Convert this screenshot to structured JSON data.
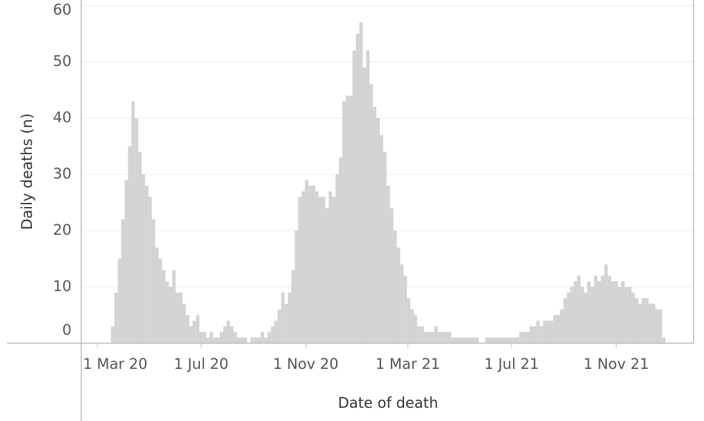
{
  "chart_data": {
    "type": "bar",
    "x_label": "Date of death",
    "y_label": "Daily deaths (n)",
    "color": "#d3d3d3",
    "grid": true,
    "xlim": [
      "2020-02-11",
      "2022-01-31"
    ],
    "ylim": [
      0,
      61
    ],
    "xticks": [
      {
        "value": "2020-03-01",
        "label": "1 Mar 20"
      },
      {
        "value": "2020-07-01",
        "label": "1 Jul 20"
      },
      {
        "value": "2020-11-01",
        "label": "1 Nov 20"
      },
      {
        "value": "2021-03-01",
        "label": "1 Mar 21"
      },
      {
        "value": "2021-07-01",
        "label": "1 Jul 21"
      },
      {
        "value": "2021-11-01",
        "label": "1 Nov 21"
      }
    ],
    "yticks": [
      0,
      10,
      20,
      30,
      40,
      50,
      60
    ],
    "x": [
      "2020-03-17",
      "2020-03-21",
      "2020-03-25",
      "2020-03-29",
      "2020-04-02",
      "2020-04-06",
      "2020-04-10",
      "2020-04-14",
      "2020-04-18",
      "2020-04-22",
      "2020-04-26",
      "2020-04-30",
      "2020-05-04",
      "2020-05-08",
      "2020-05-12",
      "2020-05-16",
      "2020-05-20",
      "2020-05-24",
      "2020-05-28",
      "2020-06-01",
      "2020-06-05",
      "2020-06-09",
      "2020-06-13",
      "2020-06-17",
      "2020-06-21",
      "2020-06-25",
      "2020-06-29",
      "2020-07-03",
      "2020-07-07",
      "2020-07-11",
      "2020-07-15",
      "2020-07-19",
      "2020-07-23",
      "2020-07-27",
      "2020-07-31",
      "2020-08-04",
      "2020-08-08",
      "2020-08-12",
      "2020-08-16",
      "2020-08-20",
      "2020-08-24",
      "2020-08-28",
      "2020-09-01",
      "2020-09-05",
      "2020-09-09",
      "2020-09-13",
      "2020-09-17",
      "2020-09-21",
      "2020-09-25",
      "2020-09-29",
      "2020-10-03",
      "2020-10-07",
      "2020-10-11",
      "2020-10-15",
      "2020-10-19",
      "2020-10-23",
      "2020-10-27",
      "2020-10-31",
      "2020-11-04",
      "2020-11-08",
      "2020-11-12",
      "2020-11-16",
      "2020-11-20",
      "2020-11-24",
      "2020-11-28",
      "2020-12-02",
      "2020-12-06",
      "2020-12-10",
      "2020-12-14",
      "2020-12-18",
      "2020-12-22",
      "2020-12-26",
      "2020-12-30",
      "2021-01-03",
      "2021-01-07",
      "2021-01-11",
      "2021-01-15",
      "2021-01-19",
      "2021-01-23",
      "2021-01-27",
      "2021-01-31",
      "2021-02-04",
      "2021-02-08",
      "2021-02-12",
      "2021-02-16",
      "2021-02-20",
      "2021-02-24",
      "2021-02-28",
      "2021-03-04",
      "2021-03-08",
      "2021-03-12",
      "2021-03-16",
      "2021-03-20",
      "2021-03-24",
      "2021-03-28",
      "2021-04-01",
      "2021-04-05",
      "2021-04-09",
      "2021-04-13",
      "2021-04-17",
      "2021-04-21",
      "2021-04-25",
      "2021-04-29",
      "2021-05-03",
      "2021-05-07",
      "2021-05-11",
      "2021-05-15",
      "2021-05-19",
      "2021-05-23",
      "2021-05-27",
      "2021-05-31",
      "2021-06-04",
      "2021-06-08",
      "2021-06-12",
      "2021-06-16",
      "2021-06-20",
      "2021-06-24",
      "2021-06-28",
      "2021-07-02",
      "2021-07-06",
      "2021-07-10",
      "2021-07-14",
      "2021-07-18",
      "2021-07-22",
      "2021-07-26",
      "2021-07-30",
      "2021-08-03",
      "2021-08-07",
      "2021-08-11",
      "2021-08-15",
      "2021-08-19",
      "2021-08-23",
      "2021-08-27",
      "2021-08-31",
      "2021-09-04",
      "2021-09-08",
      "2021-09-12",
      "2021-09-16",
      "2021-09-20",
      "2021-09-24",
      "2021-09-28",
      "2021-10-02",
      "2021-10-06",
      "2021-10-10",
      "2021-10-14",
      "2021-10-18",
      "2021-10-22",
      "2021-10-26",
      "2021-10-30",
      "2021-11-03",
      "2021-11-07",
      "2021-11-11",
      "2021-11-15",
      "2021-11-19",
      "2021-11-23",
      "2021-11-27",
      "2021-12-01",
      "2021-12-05",
      "2021-12-09",
      "2021-12-13",
      "2021-12-17",
      "2021-12-21",
      "2021-12-25"
    ],
    "values": [
      3,
      9,
      15,
      22,
      29,
      35,
      43,
      40,
      34,
      30,
      28,
      26,
      22,
      17,
      15,
      13,
      11,
      10,
      13,
      9,
      9,
      7,
      5,
      3,
      4,
      5,
      2,
      2,
      1,
      2,
      1,
      1,
      2,
      3,
      4,
      3,
      2,
      1,
      1,
      1,
      0,
      1,
      1,
      1,
      2,
      1,
      2,
      3,
      4,
      6,
      9,
      7,
      9,
      13,
      20,
      26,
      27,
      29,
      28,
      28,
      27,
      26,
      26,
      24,
      27,
      26,
      30,
      33,
      43,
      44,
      44,
      52,
      55,
      57,
      49,
      52,
      46,
      42,
      40,
      37,
      34,
      28,
      24,
      20,
      17,
      14,
      12,
      8,
      6,
      5,
      3,
      3,
      2,
      2,
      2,
      3,
      2,
      2,
      2,
      2,
      1,
      1,
      1,
      1,
      1,
      1,
      1,
      1,
      0,
      0,
      1,
      1,
      1,
      1,
      1,
      1,
      1,
      1,
      1,
      1,
      2,
      2,
      2,
      3,
      3,
      4,
      3,
      4,
      4,
      4,
      5,
      5,
      6,
      8,
      9,
      10,
      11,
      12,
      10,
      9,
      11,
      10,
      12,
      11,
      12,
      14,
      12,
      11,
      11,
      10,
      11,
      10,
      10,
      9,
      8,
      7,
      8,
      8,
      7,
      7,
      6,
      6,
      1
    ]
  }
}
